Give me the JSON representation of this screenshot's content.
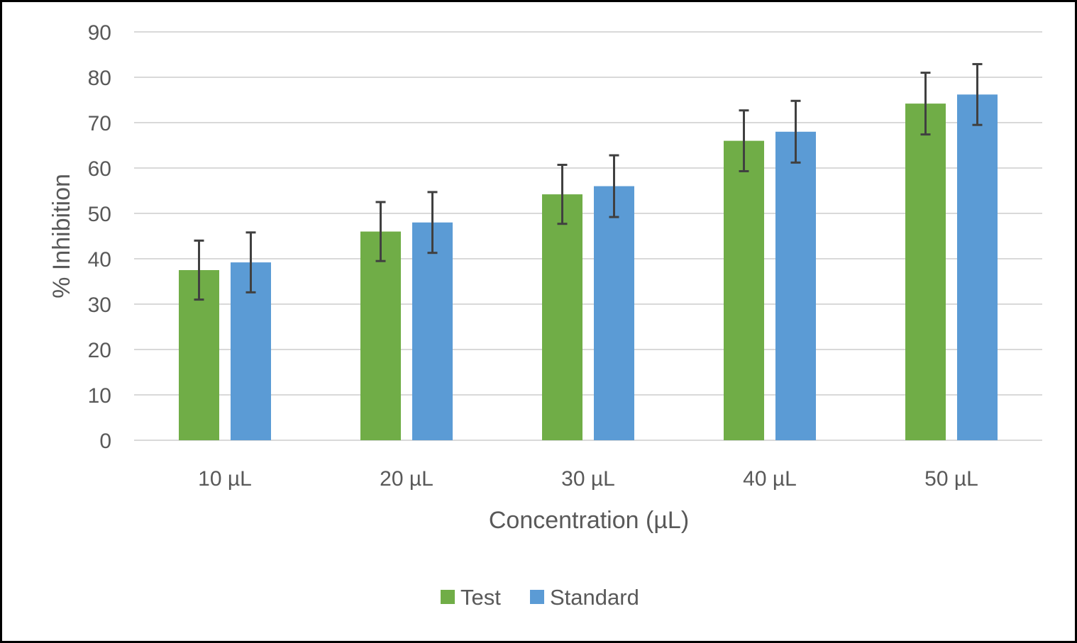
{
  "chart_data": {
    "type": "bar",
    "categories": [
      "10 µL",
      "20 µL",
      "30 µL",
      "40 µL",
      "50 µL"
    ],
    "series": [
      {
        "name": "Test",
        "values": [
          37.5,
          46,
          54.2,
          66,
          74.2
        ],
        "error": [
          6.5,
          6.5,
          6.5,
          6.7,
          6.8
        ],
        "color": "#70AD47"
      },
      {
        "name": "Standard",
        "values": [
          39.2,
          48,
          56,
          68,
          76.2
        ],
        "error": [
          6.6,
          6.7,
          6.8,
          6.8,
          6.7
        ],
        "color": "#5B9BD5"
      }
    ],
    "title": "",
    "xlabel": "Concentration (µL)",
    "ylabel": "% Inhibition",
    "ylim": [
      0,
      90
    ],
    "yticks": [
      "0",
      "10",
      "20",
      "30",
      "40",
      "50",
      "60",
      "70",
      "80",
      "90"
    ],
    "grid": true,
    "legend_position": "bottom",
    "gridline_color": "#D9D9D9",
    "errorbar_color": "#404040"
  }
}
